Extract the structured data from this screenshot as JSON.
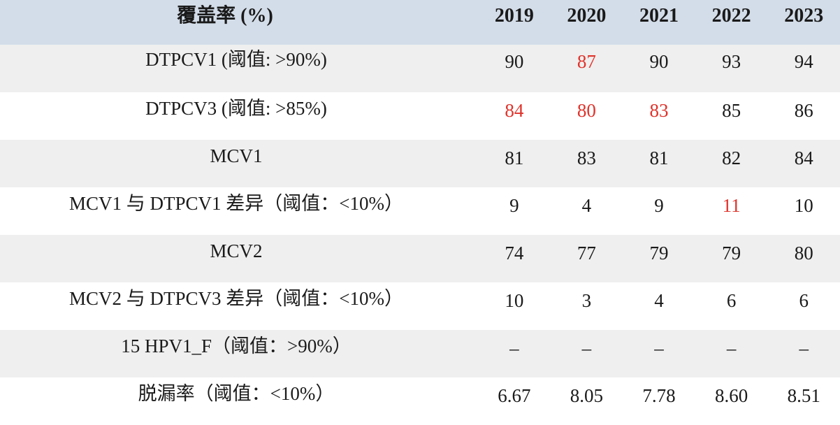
{
  "header": {
    "label": "覆盖率 (%)",
    "years": [
      "2019",
      "2020",
      "2021",
      "2022",
      "2023"
    ]
  },
  "rows": [
    {
      "label": "DTPCV1 (阈值: >90%)",
      "values": [
        "90",
        "87",
        "90",
        "93",
        "94"
      ],
      "flagged": [
        false,
        true,
        false,
        false,
        false
      ]
    },
    {
      "label": "DTPCV3 (阈值: >85%)",
      "values": [
        "84",
        "80",
        "83",
        "85",
        "86"
      ],
      "flagged": [
        true,
        true,
        true,
        false,
        false
      ]
    },
    {
      "label": "MCV1",
      "values": [
        "81",
        "83",
        "81",
        "82",
        "84"
      ],
      "flagged": [
        false,
        false,
        false,
        false,
        false
      ]
    },
    {
      "label": "MCV1 与 DTPCV1 差异（阈值：<10%）",
      "values": [
        "9",
        "4",
        "9",
        "11",
        "10"
      ],
      "flagged": [
        false,
        false,
        false,
        true,
        false
      ]
    },
    {
      "label": "MCV2",
      "values": [
        "74",
        "77",
        "79",
        "79",
        "80"
      ],
      "flagged": [
        false,
        false,
        false,
        false,
        false
      ]
    },
    {
      "label": "MCV2 与 DTPCV3 差异（阈值：<10%）",
      "values": [
        "10",
        "3",
        "4",
        "6",
        "6"
      ],
      "flagged": [
        false,
        false,
        false,
        false,
        false
      ]
    },
    {
      "label": "15 HPV1_F（阈值：>90%）",
      "values": [
        "–",
        "–",
        "–",
        "–",
        "–"
      ],
      "flagged": [
        false,
        false,
        false,
        false,
        false
      ]
    },
    {
      "label": "脱漏率（阈值：<10%）",
      "values": [
        "6.67",
        "8.05",
        "7.78",
        "8.60",
        "8.51"
      ],
      "flagged": [
        false,
        false,
        false,
        false,
        false
      ]
    }
  ],
  "colors": {
    "header_bg": "#d3dde9",
    "row_shaded_bg": "#efefef",
    "row_plain_bg": "#ffffff",
    "flag_text": "#e0322a"
  }
}
